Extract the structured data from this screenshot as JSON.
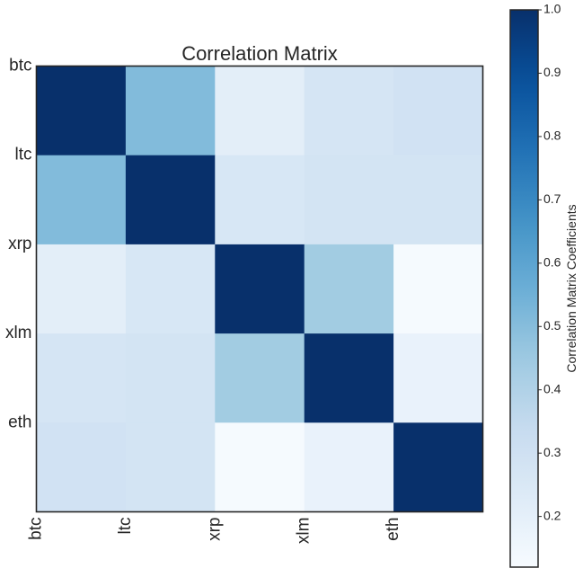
{
  "chart_data": {
    "type": "heatmap",
    "title": "Correlation Matrix",
    "x_categories": [
      "btc",
      "ltc",
      "xrp",
      "xlm",
      "eth"
    ],
    "y_categories": [
      "btc",
      "ltc",
      "xrp",
      "xlm",
      "eth"
    ],
    "values": [
      [
        1.0,
        0.51,
        0.21,
        0.27,
        0.29
      ],
      [
        0.51,
        1.0,
        0.26,
        0.28,
        0.28
      ],
      [
        0.21,
        0.26,
        1.0,
        0.44,
        0.13
      ],
      [
        0.27,
        0.28,
        0.44,
        1.0,
        0.18
      ],
      [
        0.29,
        0.28,
        0.13,
        0.18,
        1.0
      ]
    ],
    "colorbar": {
      "label": "Correlation Matrix Coefficients",
      "range": [
        0.12,
        1.0
      ],
      "ticks": [
        "0.2",
        "0.3",
        "0.4",
        "0.5",
        "0.6",
        "0.7",
        "0.8",
        "0.9",
        "1.0"
      ],
      "colormap": "Blues"
    },
    "grid": false
  }
}
